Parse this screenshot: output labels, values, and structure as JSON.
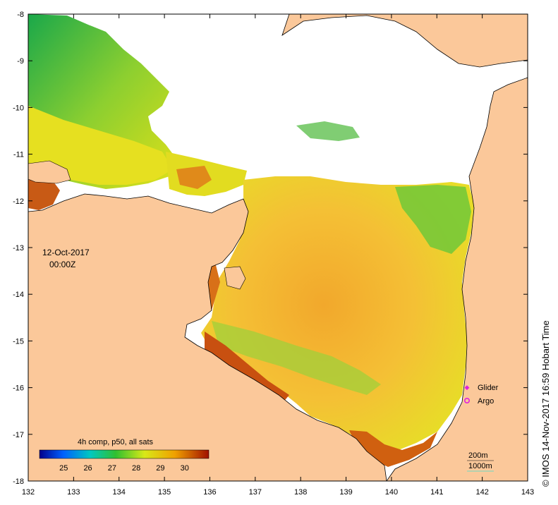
{
  "map": {
    "date": "12-Oct-2017",
    "time": "00:00Z",
    "lon_ticks": [
      "132",
      "133",
      "134",
      "135",
      "136",
      "137",
      "138",
      "139",
      "140",
      "141",
      "142",
      "143"
    ],
    "lat_ticks": [
      "-8",
      "-9",
      "-10",
      "-11",
      "-12",
      "-13",
      "-14",
      "-15",
      "-16",
      "-17",
      "-18"
    ],
    "lon_range": [
      132,
      143
    ],
    "lat_range": [
      -18,
      -8
    ],
    "colors": {
      "land": "#fbc89a",
      "no_data": "#ffffff",
      "coast": "#000000"
    }
  },
  "colorbar": {
    "title": "4h comp, p50, all sats",
    "ticks": [
      "25",
      "26",
      "27",
      "28",
      "29",
      "30"
    ],
    "range": [
      24,
      31
    ],
    "colors": [
      "#00008b",
      "#0060ff",
      "#00c8c0",
      "#30c030",
      "#d8e818",
      "#f0a000",
      "#a01000"
    ]
  },
  "legend": {
    "glider": "Glider",
    "argo": "Argo",
    "glider_color": "#e020e0",
    "argo_color": "#e020e0"
  },
  "isobaths": {
    "label_200": "200m",
    "label_1000": "1000m"
  },
  "copyright": "© IMOS 14-Nov-2017 16:59 Hobart Time"
}
